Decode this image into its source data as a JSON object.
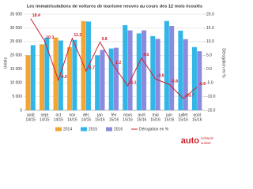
{
  "chart_data": {
    "type": "bar",
    "title": "Les immatriculations de voitures de tourisme neuves au cours des 12 mois écoulés",
    "ylabel": "Unités",
    "y2label": "Dérogation en %",
    "categories": [
      "août",
      "sept",
      "oct",
      "nov",
      "déc",
      "jan",
      "fév",
      "mars",
      "avril",
      "mai",
      "juin",
      "juillet",
      "août"
    ],
    "periods": [
      "14/15",
      "14/15",
      "14/15",
      "14/15",
      "14/15",
      "15/16",
      "15/16",
      "15/16",
      "15/16",
      "15/16",
      "15/16",
      "15/16",
      "15/16"
    ],
    "ylim": [
      0,
      35000
    ],
    "yticks": [
      0,
      {
        "value": 5000,
        "label": "5 000"
      },
      {
        "value": 10000,
        "label": "10 000"
      },
      {
        "value": 15000,
        "label": "15 000"
      },
      {
        "value": 20000,
        "label": "20 000"
      },
      {
        "value": 25000,
        "label": "25 000"
      },
      {
        "value": 30000,
        "label": "30 000"
      },
      {
        "value": 35000,
        "label": "35 000"
      }
    ],
    "y2lim": [
      -15,
      20
    ],
    "y2ticks": [
      {
        "value": -15,
        "label": "-15.0"
      },
      {
        "value": -10,
        "label": "-10.0"
      },
      {
        "value": -5,
        "label": "-5.0"
      },
      {
        "value": 0,
        "label": "0.0"
      },
      {
        "value": 5,
        "label": "5.0"
      },
      {
        "value": 10,
        "label": "10.0"
      },
      {
        "value": 15,
        "label": "15.0"
      },
      {
        "value": 20,
        "label": "20.0"
      }
    ],
    "grid": true,
    "series": [
      {
        "name": "2014",
        "color": "#f2a533",
        "values": [
          20000,
          24000,
          26500,
          23000,
          32500,
          null,
          null,
          null,
          null,
          null,
          null,
          null,
          null
        ]
      },
      {
        "name": "2015",
        "color": "#31b6e7",
        "values": [
          23700,
          26500,
          25400,
          25600,
          32300,
          20000,
          22500,
          31000,
          28000,
          27000,
          32500,
          29000,
          23000
        ]
      },
      {
        "name": "2016",
        "color": "#8a8ade",
        "values": [
          null,
          null,
          null,
          null,
          null,
          21960,
          22770,
          29100,
          29100,
          26000,
          30700,
          25900,
          21500
        ]
      },
      {
        "name": "Dérogation en %",
        "type": "line",
        "axis": "y2",
        "color": "#d0222a",
        "values": [
          18.4,
          10.3,
          -4,
          11.2,
          -0.7,
          9.8,
          1.2,
          -6.1,
          4,
          -3.6,
          -5.6,
          -10.7,
          -6.6
        ],
        "value_labels": [
          "18.4",
          "10.3",
          "-4.0",
          "11.2",
          "-0.7",
          "9.8",
          "1.2",
          "-6.1",
          "4.0",
          "-3.6",
          "-5.6",
          "-10.7",
          "-6.6"
        ]
      }
    ],
    "logo": {
      "brand": "auto",
      "sub1": "schweiz",
      "sub2": "suisse"
    }
  }
}
